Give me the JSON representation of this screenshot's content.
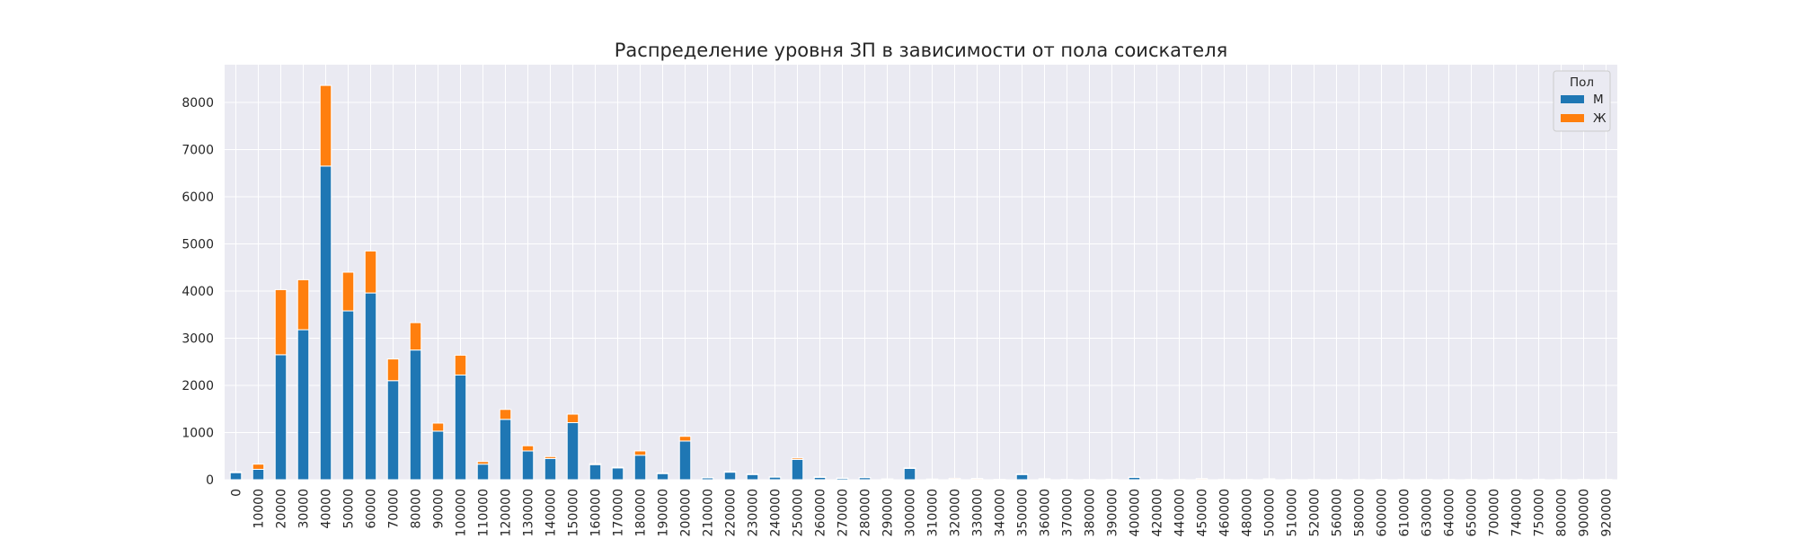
{
  "chart_data": {
    "type": "bar",
    "stacked": true,
    "title": "Распределение уровня ЗП в зависимости от пола соискателя",
    "xlabel": "",
    "ylabel": "",
    "ylim": [
      0,
      8800
    ],
    "yticks": [
      0,
      1000,
      2000,
      3000,
      4000,
      5000,
      6000,
      7000,
      8000
    ],
    "grid": true,
    "legend": {
      "title": "Пол",
      "position": "top-right"
    },
    "categories": [
      "0",
      "10000",
      "20000",
      "30000",
      "40000",
      "50000",
      "60000",
      "70000",
      "80000",
      "90000",
      "100000",
      "110000",
      "120000",
      "130000",
      "140000",
      "150000",
      "160000",
      "170000",
      "180000",
      "190000",
      "200000",
      "210000",
      "220000",
      "230000",
      "240000",
      "250000",
      "260000",
      "270000",
      "280000",
      "290000",
      "300000",
      "310000",
      "320000",
      "330000",
      "340000",
      "350000",
      "360000",
      "370000",
      "380000",
      "390000",
      "400000",
      "420000",
      "440000",
      "450000",
      "460000",
      "480000",
      "500000",
      "510000",
      "520000",
      "560000",
      "580000",
      "600000",
      "610000",
      "630000",
      "640000",
      "650000",
      "700000",
      "740000",
      "750000",
      "800000",
      "900000",
      "920000"
    ],
    "series": [
      {
        "name": "М",
        "color": "#1f77b4",
        "values": [
          150,
          220,
          2650,
          3180,
          6650,
          3580,
          3960,
          2100,
          2750,
          1030,
          2220,
          330,
          1280,
          610,
          450,
          1210,
          320,
          250,
          520,
          130,
          820,
          40,
          160,
          110,
          55,
          430,
          50,
          30,
          45,
          15,
          240,
          12,
          10,
          8,
          5,
          110,
          5,
          3,
          3,
          3,
          50,
          3,
          2,
          5,
          2,
          2,
          5,
          2,
          2,
          2,
          2,
          5,
          2,
          2,
          2,
          2,
          2,
          2,
          2,
          2,
          2,
          2
        ]
      },
      {
        "name": "Ж",
        "color": "#ff7f0e",
        "values": [
          15,
          110,
          1380,
          1060,
          1710,
          820,
          890,
          460,
          580,
          170,
          420,
          55,
          210,
          110,
          40,
          180,
          20,
          15,
          90,
          10,
          100,
          5,
          15,
          10,
          5,
          30,
          10,
          5,
          5,
          3,
          10,
          3,
          20,
          20,
          3,
          10,
          15,
          3,
          3,
          3,
          5,
          3,
          3,
          20,
          3,
          3,
          15,
          3,
          3,
          3,
          3,
          3,
          3,
          3,
          3,
          3,
          3,
          3,
          10,
          3,
          3,
          3
        ]
      }
    ]
  }
}
